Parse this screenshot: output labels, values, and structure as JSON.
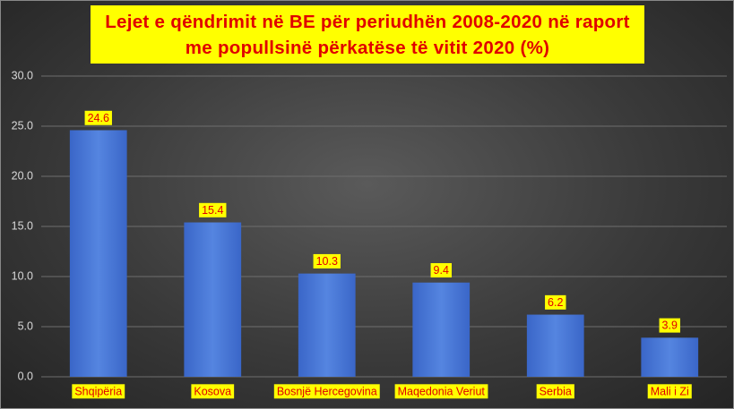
{
  "chart_data": {
    "type": "bar",
    "title": "Lejet e qëndrimit në BE për periudhën 2008-2020 në raport me popullsinë përkatëse të vitit 2020 (%)",
    "categories": [
      "Shqipëria",
      "Kosova",
      "Bosnjë Hercegovina",
      "Maqedonia Veriut",
      "Serbia",
      "Mali i Zi"
    ],
    "values": [
      24.6,
      15.4,
      10.3,
      9.4,
      6.2,
      3.9
    ],
    "color": "#4472c4",
    "ylim": [
      0,
      30
    ],
    "yticks": [
      {
        "value": 0,
        "label": "0.0"
      },
      {
        "value": 5,
        "label": "5.0"
      },
      {
        "value": 10,
        "label": "10.0"
      },
      {
        "value": 15,
        "label": "15.0"
      },
      {
        "value": 20,
        "label": "20.0"
      },
      {
        "value": 25,
        "label": "25.0"
      },
      {
        "value": 30,
        "label": "30.0"
      }
    ],
    "grid": true
  }
}
